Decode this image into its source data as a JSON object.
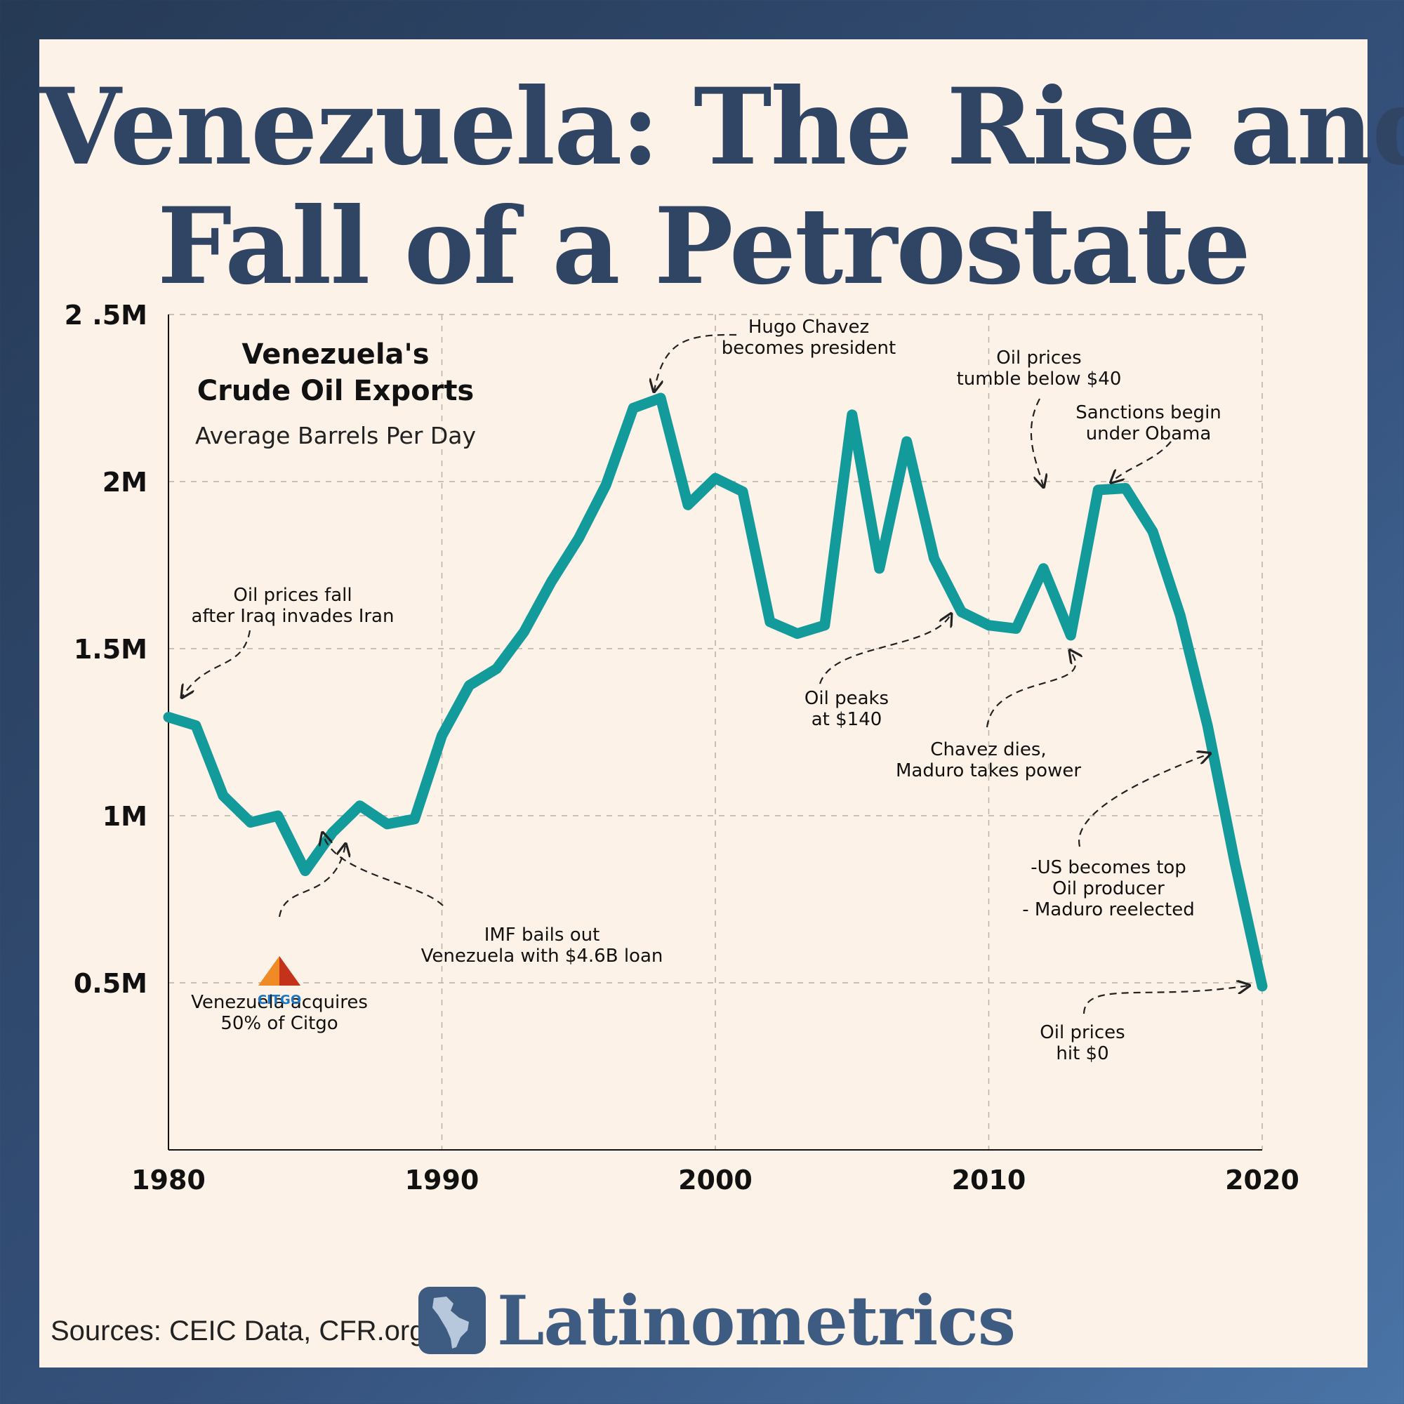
{
  "title_line1": "Venezuela: The Rise and",
  "title_line2": "Fall of a Petrostate",
  "sources": "Sources: CEIC Data, CFR.org",
  "brand": "Latinometrics",
  "logo_text": "CITGO",
  "colors": {
    "line": "#139a9a",
    "title": "#2f4563",
    "background": "#fdf2e8",
    "brand": "#3e5c82"
  },
  "chart_data": {
    "type": "line",
    "title": "Venezuela's\nCrude Oil Exports",
    "subtitle": "Average Barrels Per Day",
    "x_ticks": [
      1980,
      1990,
      2000,
      2010,
      2020
    ],
    "y_ticks": [
      {
        "value": 500000,
        "label": "0.5M"
      },
      {
        "value": 1000000,
        "label": "1M"
      },
      {
        "value": 1500000,
        "label": "1.5M"
      },
      {
        "value": 2000000,
        "label": "2M"
      },
      {
        "value": 2500000,
        "label": "2 .5M"
      }
    ],
    "xlim": [
      1980,
      2020
    ],
    "ylim": [
      0,
      2500000
    ],
    "grid": true,
    "series": [
      {
        "x": [
          1980,
          1981,
          1982,
          1983,
          1984,
          1985,
          1986,
          1987,
          1988,
          1989,
          1990,
          1991,
          1992,
          1993,
          1994,
          1995,
          1996,
          1997,
          1998,
          1999,
          2000,
          2001,
          2002,
          2003,
          2004,
          2005,
          2006,
          2007,
          2008,
          2009,
          2010,
          2011,
          2012,
          2013,
          2014,
          2015,
          2016,
          2017,
          2018,
          2019,
          2020
        ],
        "values": [
          1295000,
          1270000,
          1060000,
          980000,
          1000000,
          835000,
          950000,
          1030000,
          975000,
          990000,
          1240000,
          1390000,
          1440000,
          1550000,
          1700000,
          1830000,
          1990000,
          2220000,
          2250000,
          1930000,
          2010000,
          1970000,
          1580000,
          1545000,
          1570000,
          2200000,
          1740000,
          2120000,
          1770000,
          1610000,
          1570000,
          1560000,
          1740000,
          1540000,
          1975000,
          1980000,
          1850000,
          1600000,
          1270000,
          860000,
          490000
        ]
      }
    ],
    "annotations": [
      {
        "text": "Oil prices fall\nafter Iraq invades Iran"
      },
      {
        "text": "Venezuela acquires\n50% of Citgo"
      },
      {
        "text": "IMF bails out\nVenezuela with $4.6B loan"
      },
      {
        "text": "Hugo Chavez\nbecomes president"
      },
      {
        "text": "Oil peaks\nat $140"
      },
      {
        "text": "Chavez dies,\nMaduro takes power"
      },
      {
        "text": "Oil prices\ntumble below $40"
      },
      {
        "text": "Sanctions begin\nunder Obama"
      },
      {
        "text": "-US becomes top\nOil producer\n- Maduro reelected"
      },
      {
        "text": "Oil prices\nhit $0"
      }
    ]
  }
}
